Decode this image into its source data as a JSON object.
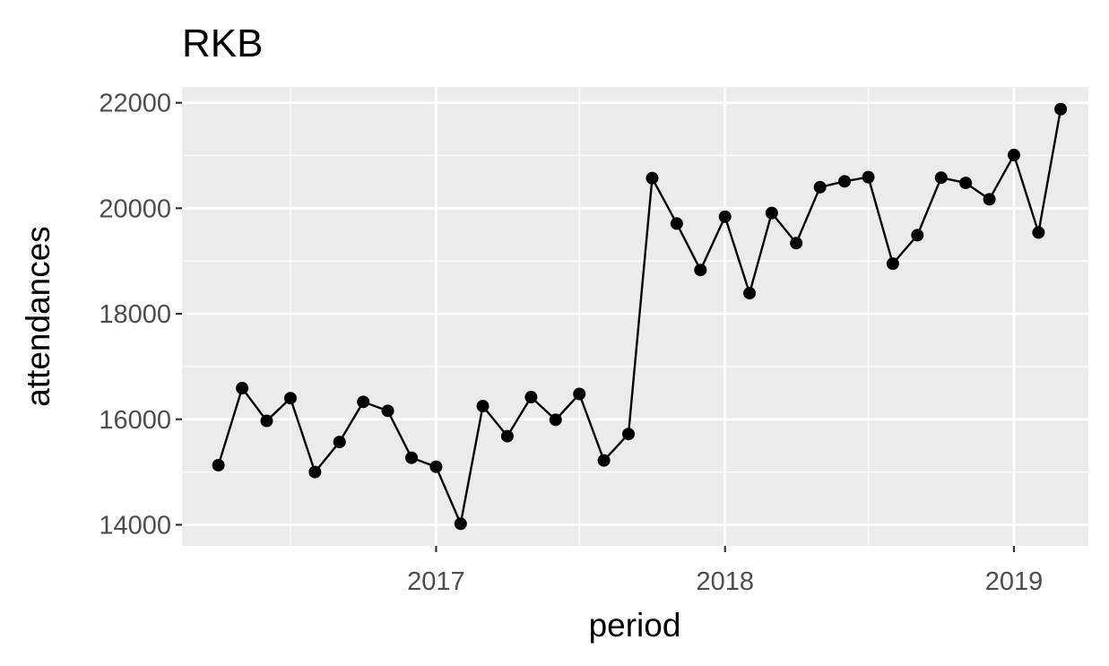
{
  "chart_data": {
    "type": "line",
    "title": "RKB",
    "xlabel": "period",
    "ylabel": "attendances",
    "x": [
      "2016-04",
      "2016-05",
      "2016-06",
      "2016-07",
      "2016-08",
      "2016-09",
      "2016-10",
      "2016-11",
      "2016-12",
      "2017-01",
      "2017-02",
      "2017-03",
      "2017-04",
      "2017-05",
      "2017-06",
      "2017-07",
      "2017-08",
      "2017-09",
      "2017-10",
      "2017-11",
      "2017-12",
      "2018-01",
      "2018-02",
      "2018-03",
      "2018-04",
      "2018-05",
      "2018-06",
      "2018-07",
      "2018-08",
      "2018-09",
      "2018-10",
      "2018-11",
      "2018-12",
      "2019-01",
      "2019-02",
      "2019-03"
    ],
    "series": [
      {
        "values": [
          15130,
          16590,
          15970,
          16400,
          15000,
          15570,
          16330,
          16160,
          15270,
          15100,
          14020,
          16250,
          15680,
          16420,
          15990,
          16480,
          15220,
          15720,
          20570,
          19710,
          18830,
          19840,
          18390,
          19910,
          19340,
          20400,
          20510,
          20590,
          18950,
          19490,
          20580,
          20480,
          20170,
          21010,
          19540,
          21880
        ]
      }
    ],
    "x_ticks": [
      "2017",
      "2018",
      "2019"
    ],
    "y_ticks": [
      "14000",
      "16000",
      "18000",
      "20000",
      "22000"
    ],
    "ylim": [
      13600,
      22300
    ],
    "xlim": [
      "2016-02-15",
      "2019-04-05"
    ],
    "grid": true,
    "colors": {
      "panel_background": "#ebebeb",
      "grid_line": "#ffffff",
      "line": "#000000",
      "point": "#000000",
      "tick_label": "#4d4d4d"
    }
  }
}
